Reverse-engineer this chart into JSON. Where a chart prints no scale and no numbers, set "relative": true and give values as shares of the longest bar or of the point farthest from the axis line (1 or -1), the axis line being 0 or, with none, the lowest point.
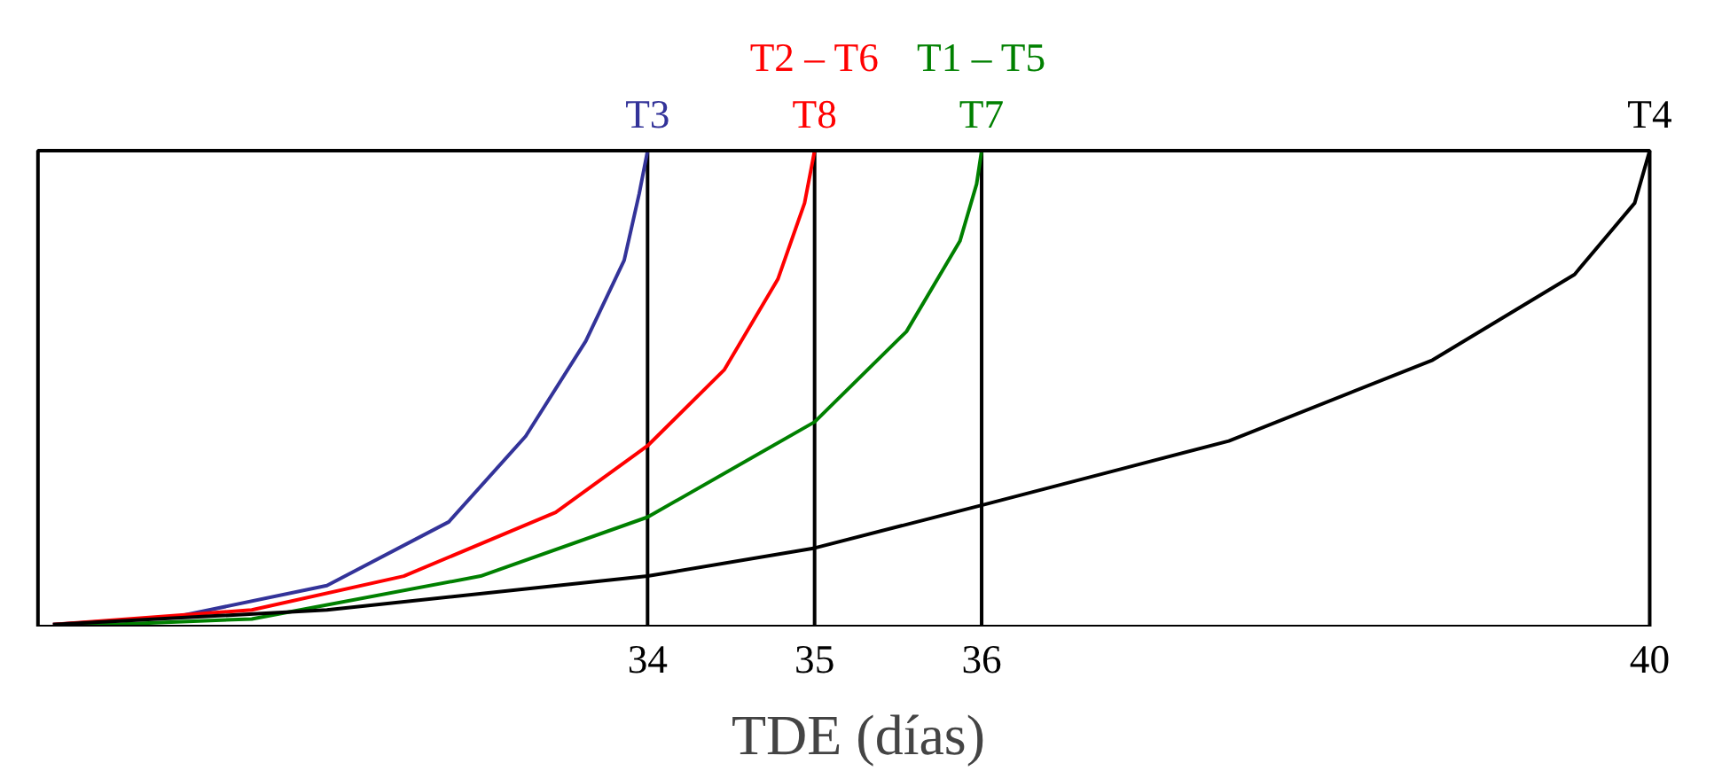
{
  "chart_data": {
    "type": "line",
    "xlabel": "TDE (días)",
    "relative": true,
    "xlim": [
      30.35,
      40
    ],
    "xticks": [
      34,
      35,
      36,
      40
    ],
    "tick_labels": "x",
    "grid": false,
    "marker": "none",
    "line_style": "solid",
    "series": [
      {
        "name": "T3",
        "color": "#333399",
        "x": [
          30.44,
          31.17,
          32.08,
          32.81,
          33.27,
          33.63,
          33.86,
          33.95,
          34
        ],
        "values": [
          0.004,
          0.02,
          0.086,
          0.22,
          0.4,
          0.6,
          0.77,
          0.91,
          1.0
        ]
      },
      {
        "name": "T8",
        "color": "#ff0000",
        "x": [
          30.44,
          31.63,
          32.54,
          33.45,
          34,
          34.46,
          34.78,
          34.94,
          35
        ],
        "values": [
          0.004,
          0.035,
          0.106,
          0.24,
          0.38,
          0.54,
          0.73,
          0.89,
          1.0
        ]
      },
      {
        "name": "T7",
        "color": "#008000",
        "x": [
          30.48,
          31.63,
          33.0,
          34,
          35,
          35.55,
          35.87,
          35.97,
          36
        ],
        "values": [
          0.0,
          0.016,
          0.106,
          0.23,
          0.43,
          0.62,
          0.81,
          0.93,
          1.0
        ]
      },
      {
        "name": "T4",
        "color": "#000000",
        "x": [
          30.44,
          32.08,
          34,
          35,
          36,
          37.48,
          38.7,
          39.55,
          39.91,
          40
        ],
        "values": [
          0.004,
          0.035,
          0.106,
          0.165,
          0.255,
          0.39,
          0.56,
          0.74,
          0.89,
          1.0
        ]
      }
    ],
    "ref_lines": [
      {
        "axis": "x",
        "value": 34,
        "color": "#000000"
      },
      {
        "axis": "x",
        "value": 35,
        "color": "#000000"
      },
      {
        "axis": "x",
        "value": 36,
        "color": "#000000"
      }
    ],
    "annotations": [
      {
        "text": "T2 – T6",
        "x": 35,
        "y": 1.0
      },
      {
        "text": "T1 – T5",
        "x": 36,
        "y": 1.0
      }
    ]
  }
}
